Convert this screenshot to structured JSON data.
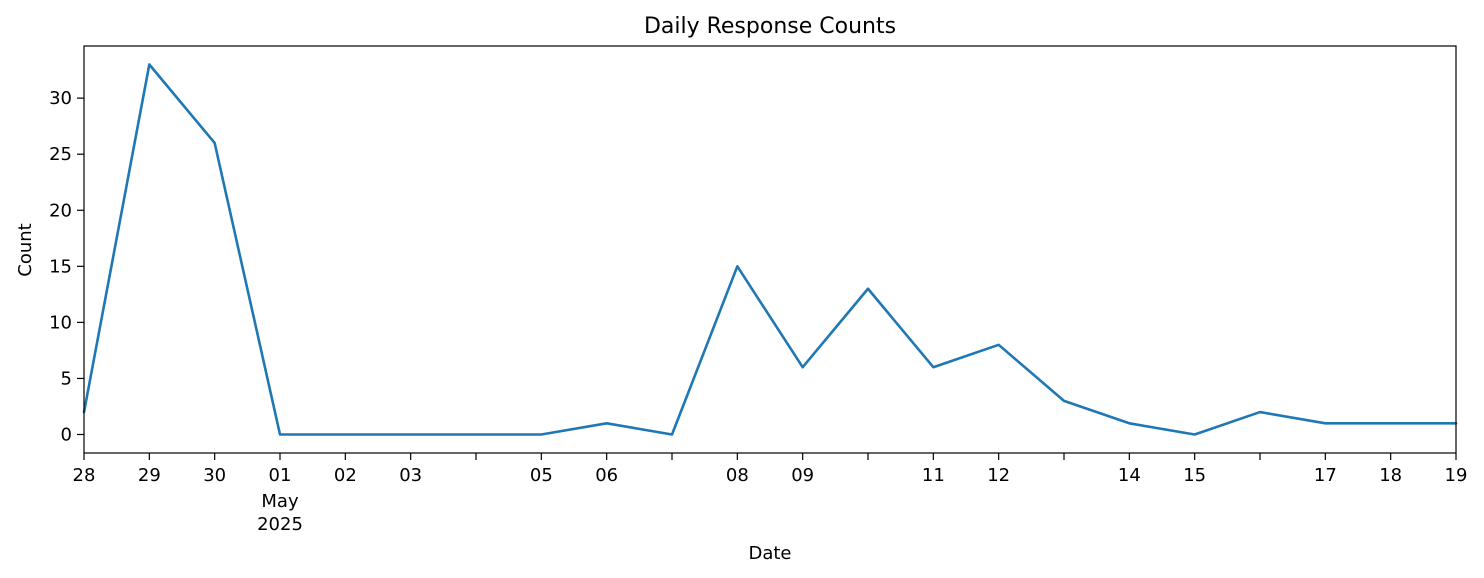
{
  "chart_data": {
    "type": "line",
    "title": "Daily Response Counts",
    "xlabel": "Date",
    "ylabel": "Count",
    "x": [
      "2025-04-28",
      "2025-04-29",
      "2025-04-30",
      "2025-05-01",
      "2025-05-02",
      "2025-05-03",
      "2025-05-04",
      "2025-05-05",
      "2025-05-06",
      "2025-05-07",
      "2025-05-08",
      "2025-05-09",
      "2025-05-10",
      "2025-05-11",
      "2025-05-12",
      "2025-05-13",
      "2025-05-14",
      "2025-05-15",
      "2025-05-16",
      "2025-05-17",
      "2025-05-18",
      "2025-05-19"
    ],
    "series": [
      {
        "values": [
          2,
          33,
          26,
          0,
          0,
          0,
          0,
          0,
          1,
          0,
          15,
          6,
          13,
          6,
          8,
          3,
          1,
          0,
          2,
          1,
          1,
          1
        ],
        "color": "#1f77b4"
      }
    ],
    "x_range": [
      "2025-04-28",
      "2025-05-19"
    ],
    "ylim": [
      -1.65,
      34.65
    ],
    "y_ticks": [
      0,
      5,
      10,
      15,
      20,
      25,
      30
    ],
    "x_ticks": [
      {
        "date": "2025-04-28",
        "label": "28"
      },
      {
        "date": "2025-04-29",
        "label": "29"
      },
      {
        "date": "2025-04-30",
        "label": "30"
      },
      {
        "date": "2025-05-01",
        "label": "01",
        "sublabels": [
          "May",
          "2025"
        ]
      },
      {
        "date": "2025-05-02",
        "label": "02"
      },
      {
        "date": "2025-05-03",
        "label": "03"
      },
      {
        "date": "2025-05-04",
        "label": ""
      },
      {
        "date": "2025-05-05",
        "label": "05"
      },
      {
        "date": "2025-05-06",
        "label": "06"
      },
      {
        "date": "2025-05-07",
        "label": ""
      },
      {
        "date": "2025-05-08",
        "label": "08"
      },
      {
        "date": "2025-05-09",
        "label": "09"
      },
      {
        "date": "2025-05-10",
        "label": ""
      },
      {
        "date": "2025-05-11",
        "label": "11"
      },
      {
        "date": "2025-05-12",
        "label": "12"
      },
      {
        "date": "2025-05-13",
        "label": ""
      },
      {
        "date": "2025-05-14",
        "label": "14"
      },
      {
        "date": "2025-05-15",
        "label": "15"
      },
      {
        "date": "2025-05-16",
        "label": ""
      },
      {
        "date": "2025-05-17",
        "label": "17"
      },
      {
        "date": "2025-05-18",
        "label": "18"
      },
      {
        "date": "2025-05-19",
        "label": "19"
      }
    ],
    "grid": false,
    "legend": "none"
  }
}
